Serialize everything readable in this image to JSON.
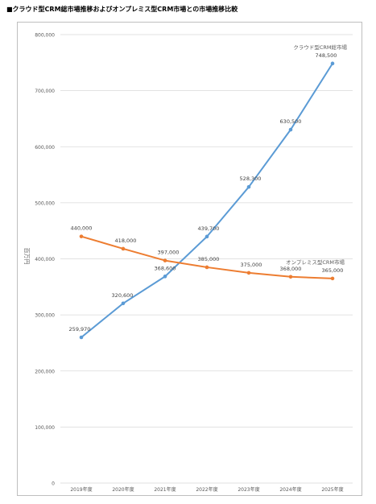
{
  "chart_data": {
    "type": "line",
    "title": "■クラウド型CRM総市場推移およびオンプレミス型CRM市場との市場推移比較",
    "ylabel": "百万円",
    "ylim": [
      0,
      800000
    ],
    "yticks": [
      "0",
      "100,000",
      "200,000",
      "300,000",
      "400,000",
      "500,000",
      "600,000",
      "700,000",
      "800,000"
    ],
    "categories": [
      "2019年度",
      "2020年度",
      "2021年度",
      "2022年度",
      "2023年度",
      "2024年度",
      "2025年度"
    ],
    "grid": true,
    "series": [
      {
        "name": "クラウド型CRM総市場",
        "color": "#5b9bd5",
        "values": [
          259970,
          320600,
          368600,
          439700,
          528300,
          630500,
          748500
        ],
        "labels": [
          "259,970",
          "320,600",
          "368,600",
          "439,700",
          "528,300",
          "630,500",
          "748,500"
        ]
      },
      {
        "name": "オンプレミス型CRM市場",
        "color": "#ed7d31",
        "values": [
          440000,
          418000,
          397000,
          385000,
          375000,
          368000,
          365000
        ],
        "labels": [
          "440,000",
          "418,000",
          "397,000",
          "385,000",
          "375,000",
          "368,000",
          "365,000"
        ]
      }
    ]
  }
}
